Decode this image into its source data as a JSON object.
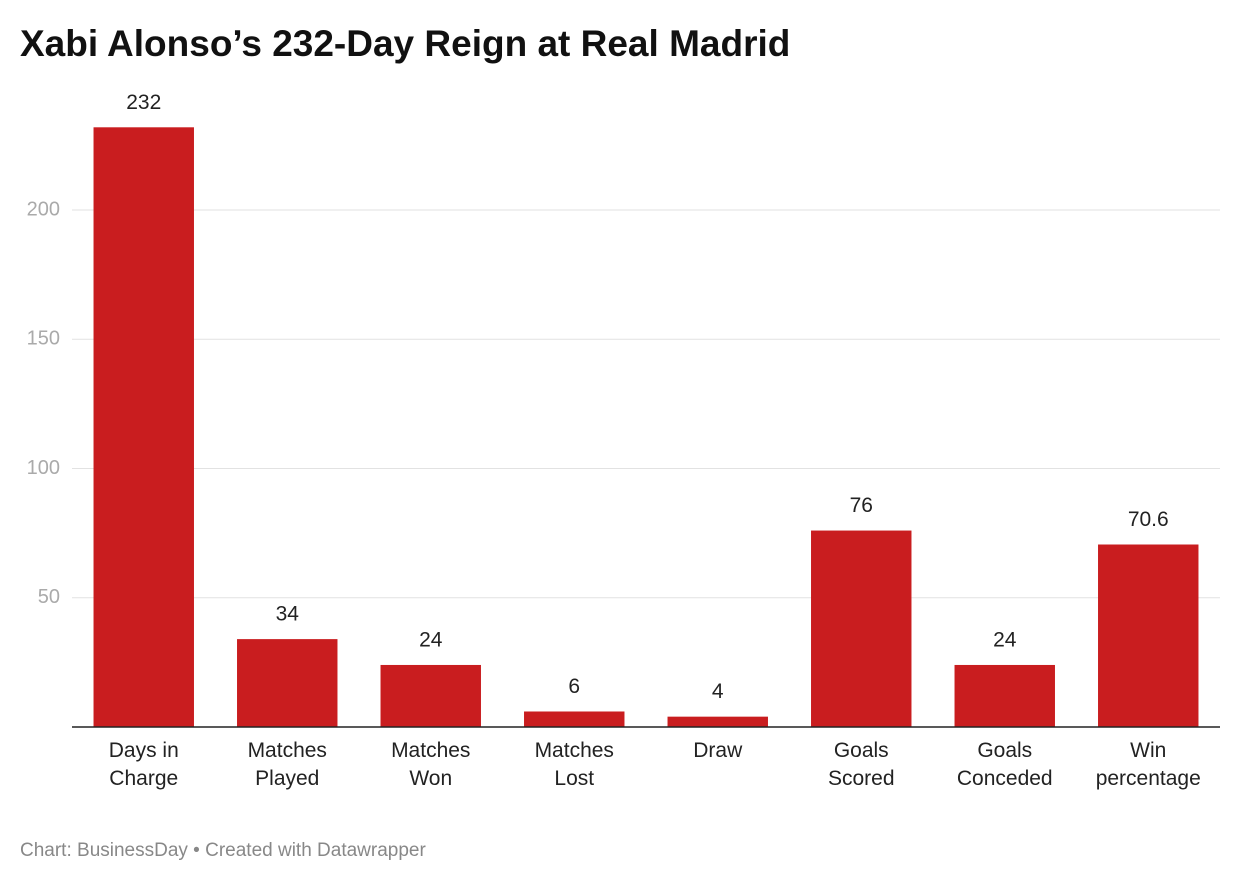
{
  "chart_data": {
    "type": "bar",
    "title": "Xabi Alonso’s 232-Day Reign at Real Madrid",
    "categories": [
      "Days in Charge",
      "Matches Played",
      "Matches Won",
      "Matches Lost",
      "Draw",
      "Goals Scored",
      "Goals Conceded",
      "Win percentage"
    ],
    "values": [
      232,
      34,
      24,
      6,
      4,
      76,
      24,
      70.6
    ],
    "color": "#c91d1f",
    "ylim": [
      0,
      232
    ],
    "yticks": [
      50,
      100,
      150,
      200
    ],
    "grid": true,
    "footer": "Chart: BusinessDay • Created with Datawrapper"
  }
}
